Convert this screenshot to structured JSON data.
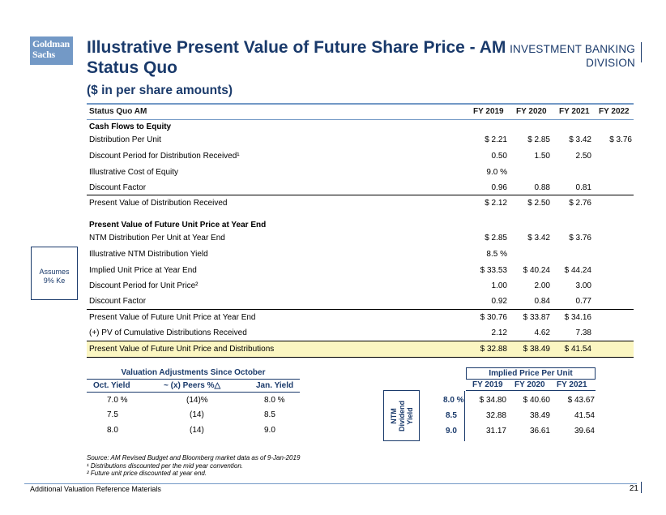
{
  "header": {
    "logo_line1": "Goldman",
    "logo_line2": "Sachs",
    "title": "Illustrative Present Value of Future Share Price - AM Status Quo",
    "subtitle": "($ in per share amounts)",
    "division_line1": "INVESTMENT BANKING",
    "division_line2": "DIVISION"
  },
  "table": {
    "col_title": "Status Quo AM",
    "cols": [
      "FY 2019",
      "FY 2020",
      "FY 2021",
      "FY 2022"
    ],
    "section1": "Cash Flows to Equity",
    "rows1": [
      {
        "label": "Distribution Per Unit",
        "v": [
          "$ 2.21",
          "$ 2.85",
          "$ 3.42",
          "$ 3.76"
        ]
      },
      {
        "label": "Discount Period for Distribution Received¹",
        "v": [
          "0.50",
          "1.50",
          "2.50",
          ""
        ]
      },
      {
        "label": "Illustrative Cost of Equity",
        "v": [
          "9.0 %",
          "",
          "",
          ""
        ]
      },
      {
        "label": "Discount Factor",
        "v": [
          "0.96",
          "0.88",
          "0.81",
          ""
        ]
      },
      {
        "label": "Present Value of Distribution Received",
        "v": [
          "$ 2.12",
          "$ 2.50",
          "$ 2.76",
          ""
        ]
      }
    ],
    "section2": "Present Value of Future Unit Price at Year End",
    "rows2": [
      {
        "label": "NTM Distribution Per Unit at Year End",
        "v": [
          "$ 2.85",
          "$ 3.42",
          "$ 3.76"
        ]
      },
      {
        "label": "Illustrative NTM Distribution Yield",
        "v": [
          "8.5 %",
          "",
          ""
        ]
      },
      {
        "label": "Implied Unit Price at Year End",
        "v": [
          "$ 33.53",
          "$ 40.24",
          "$ 44.24"
        ]
      },
      {
        "label": "Discount Period for Unit Price²",
        "v": [
          "1.00",
          "2.00",
          "3.00"
        ]
      },
      {
        "label": "Discount Factor",
        "v": [
          "0.92",
          "0.84",
          "0.77"
        ]
      },
      {
        "label": "Present Value of Future Unit Price at Year End",
        "v": [
          "$ 30.76",
          "$ 33.87",
          "$ 34.16"
        ]
      },
      {
        "label": "(+) PV of Cumulative Distributions Received",
        "v": [
          "2.12",
          "4.62",
          "7.38"
        ]
      },
      {
        "label": "Present Value of Future Unit Price and Distributions",
        "v": [
          "$ 32.88",
          "$ 38.49",
          "$ 41.54"
        ]
      }
    ]
  },
  "assumes": {
    "line1": "Assumes",
    "line2": "9% Ke"
  },
  "valuation": {
    "title": "Valuation Adjustments Since October",
    "headers": [
      "Oct. Yield",
      "~ (x) Peers %△",
      "Jan. Yield"
    ],
    "rows": [
      [
        "7.0 %",
        "(14)%",
        "8.0 %"
      ],
      [
        "7.5",
        "(14)",
        "8.5"
      ],
      [
        "8.0",
        "(14)",
        "9.0"
      ]
    ]
  },
  "implied": {
    "title": "Implied Price Per Unit",
    "cols": [
      "FY 2019",
      "FY 2020",
      "FY 2021"
    ],
    "axis_label_1": "NTM",
    "axis_label_2": "Dividend",
    "axis_label_3": "Yield",
    "rows": [
      {
        "yield": "8.0 %",
        "v": [
          "$ 34.80",
          "$ 40.60",
          "$ 43.67"
        ]
      },
      {
        "yield": "8.5",
        "v": [
          "32.88",
          "38.49",
          "41.54"
        ]
      },
      {
        "yield": "9.0",
        "v": [
          "31.17",
          "36.61",
          "39.64"
        ]
      }
    ]
  },
  "notes": {
    "source": "Source: AM Revised Budget and Bloomberg market data as of 9-Jan-2019",
    "n1": "¹ Distributions discounted per the mid year convention.",
    "n2": "² Future unit price discounted at year end."
  },
  "footer": {
    "left": "Additional Valuation Reference Materials",
    "page": "21"
  }
}
